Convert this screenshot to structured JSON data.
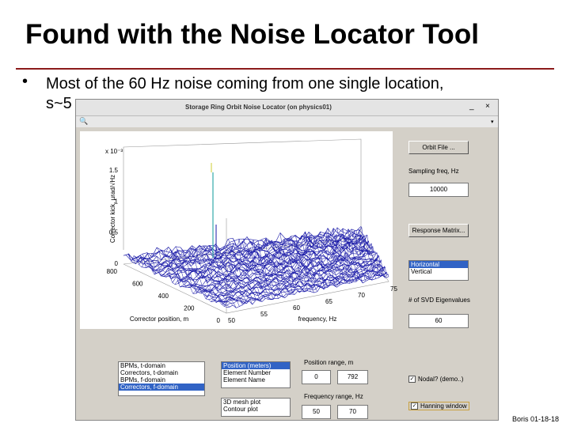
{
  "slide": {
    "title": "Found with the Noise Locator Tool",
    "bullet": "Most of the 60 Hz noise coming from one single location,",
    "bullet_cont": "s~5",
    "footer": "Boris 01-18-18"
  },
  "window": {
    "title": "Storage Ring Orbit Noise Locator (on physics01)",
    "plot": {
      "z_exponent": "x 10⁻³",
      "z_ticks": [
        "1.5",
        "1",
        "0.5",
        "0"
      ],
      "position_ticks": [
        "800",
        "600",
        "400",
        "200",
        "0"
      ],
      "frequency_ticks": [
        "50",
        "55",
        "60",
        "65",
        "70",
        "75"
      ],
      "z_label": "Corrector kick, µrad/√Hz",
      "position_label": "Corrector position, m",
      "frequency_label": "frequency, Hz"
    },
    "right_panel": {
      "orbit_button": "Orbit File ...",
      "sampling_label": "Sampling freq, Hz",
      "sampling_value": "10000",
      "response_button": "Response Matrix...",
      "plane_list": [
        "Horizontal",
        "Vertical"
      ],
      "svd_label": "# of SVD Eigenvalues",
      "svd_value": "60"
    },
    "bottom": {
      "data_list": [
        "BPMs, t-domain",
        "Correctors, t-domain",
        "BPMs, f-domain",
        "Correctors, f-domain"
      ],
      "axis_list": [
        "Position (meters)",
        "Element Number",
        "Element Name"
      ],
      "plot_list": [
        "3D mesh plot",
        "Contour plot"
      ],
      "position_range_label": "Position range, m",
      "position_min": "0",
      "position_max": "792",
      "frequency_range_label": "Frequency range, Hz",
      "frequency_min": "50",
      "frequency_max": "70",
      "nodal_check": "Nodal? (demo..)",
      "hanning_check": "Hanning window"
    }
  }
}
